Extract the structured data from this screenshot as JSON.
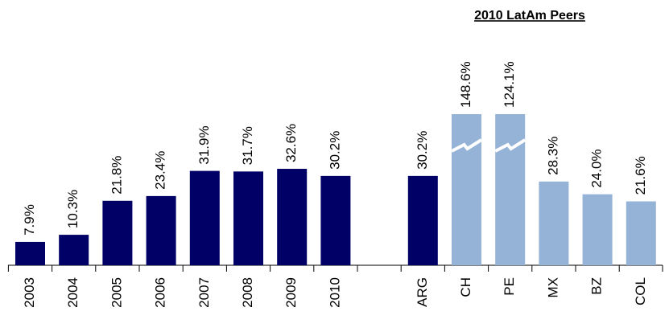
{
  "chart_data": {
    "type": "bar",
    "annotations": [
      "2010 LatAm Peers"
    ],
    "categories": [
      "2003",
      "2004",
      "2005",
      "2006",
      "2007",
      "2008",
      "2009",
      "2010",
      null,
      "ARG",
      "CH",
      "PE",
      "MX",
      "BZ",
      "COL"
    ],
    "values": [
      7.9,
      10.3,
      21.8,
      23.4,
      31.9,
      31.7,
      32.6,
      30.2,
      null,
      30.2,
      148.6,
      124.1,
      28.3,
      24.0,
      21.6
    ],
    "value_labels": [
      "7.9%",
      "10.3%",
      "21.8%",
      "23.4%",
      "31.9%",
      "31.7%",
      "32.6%",
      "30.2%",
      null,
      "30.2%",
      "148.6%",
      "124.1%",
      "28.3%",
      "24.0%",
      "21.6%"
    ],
    "colors": [
      "#000066",
      "#000066",
      "#000066",
      "#000066",
      "#000066",
      "#000066",
      "#000066",
      "#000066",
      null,
      "#000066",
      "#95b3d7",
      "#95b3d7",
      "#95b3d7",
      "#95b3d7",
      "#95b3d7"
    ]
  }
}
